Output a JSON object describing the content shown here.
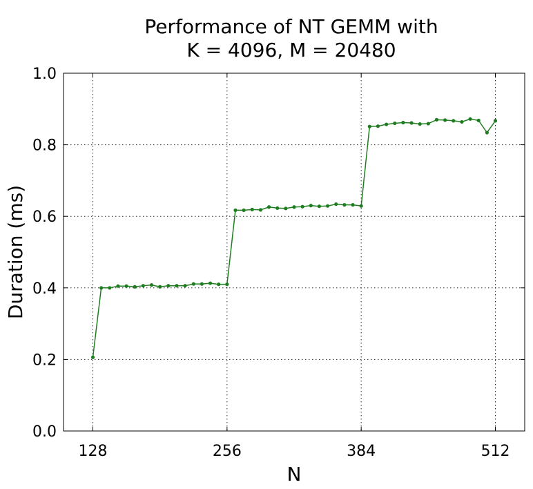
{
  "chart_data": {
    "type": "line",
    "title": [
      "Performance of NT GEMM with",
      "K = 4096, M = 20480"
    ],
    "xlabel": "N",
    "ylabel": "Duration (ms)",
    "xlim": [
      100,
      540
    ],
    "ylim": [
      0.0,
      1.0
    ],
    "xticks": [
      128,
      256,
      384,
      512
    ],
    "xtick_labels": [
      "128",
      "256",
      "384",
      "512"
    ],
    "yticks": [
      0.0,
      0.2,
      0.4,
      0.6,
      0.8,
      1.0
    ],
    "ytick_labels": [
      "0.0",
      "0.2",
      "0.4",
      "0.6",
      "0.8",
      "1.0"
    ],
    "grid": true,
    "color": "#1f7d1f",
    "series": [
      {
        "x": [
          128,
          136,
          144,
          152,
          160,
          168,
          176,
          184,
          192,
          200,
          208,
          216,
          224,
          232,
          240,
          248,
          256,
          264,
          272,
          280,
          288,
          296,
          304,
          312,
          320,
          328,
          336,
          344,
          352,
          360,
          368,
          376,
          384,
          392,
          400,
          408,
          416,
          424,
          432,
          440,
          448,
          456,
          464,
          472,
          480,
          488,
          496,
          504,
          512
        ],
        "y": [
          0.206,
          0.4,
          0.4,
          0.405,
          0.405,
          0.403,
          0.406,
          0.408,
          0.403,
          0.406,
          0.406,
          0.406,
          0.411,
          0.411,
          0.413,
          0.41,
          0.41,
          0.617,
          0.617,
          0.619,
          0.618,
          0.626,
          0.623,
          0.622,
          0.626,
          0.627,
          0.63,
          0.628,
          0.629,
          0.634,
          0.632,
          0.632,
          0.629,
          0.851,
          0.852,
          0.857,
          0.86,
          0.862,
          0.861,
          0.858,
          0.859,
          0.87,
          0.869,
          0.867,
          0.864,
          0.872,
          0.868,
          0.834,
          0.867
        ]
      }
    ]
  }
}
